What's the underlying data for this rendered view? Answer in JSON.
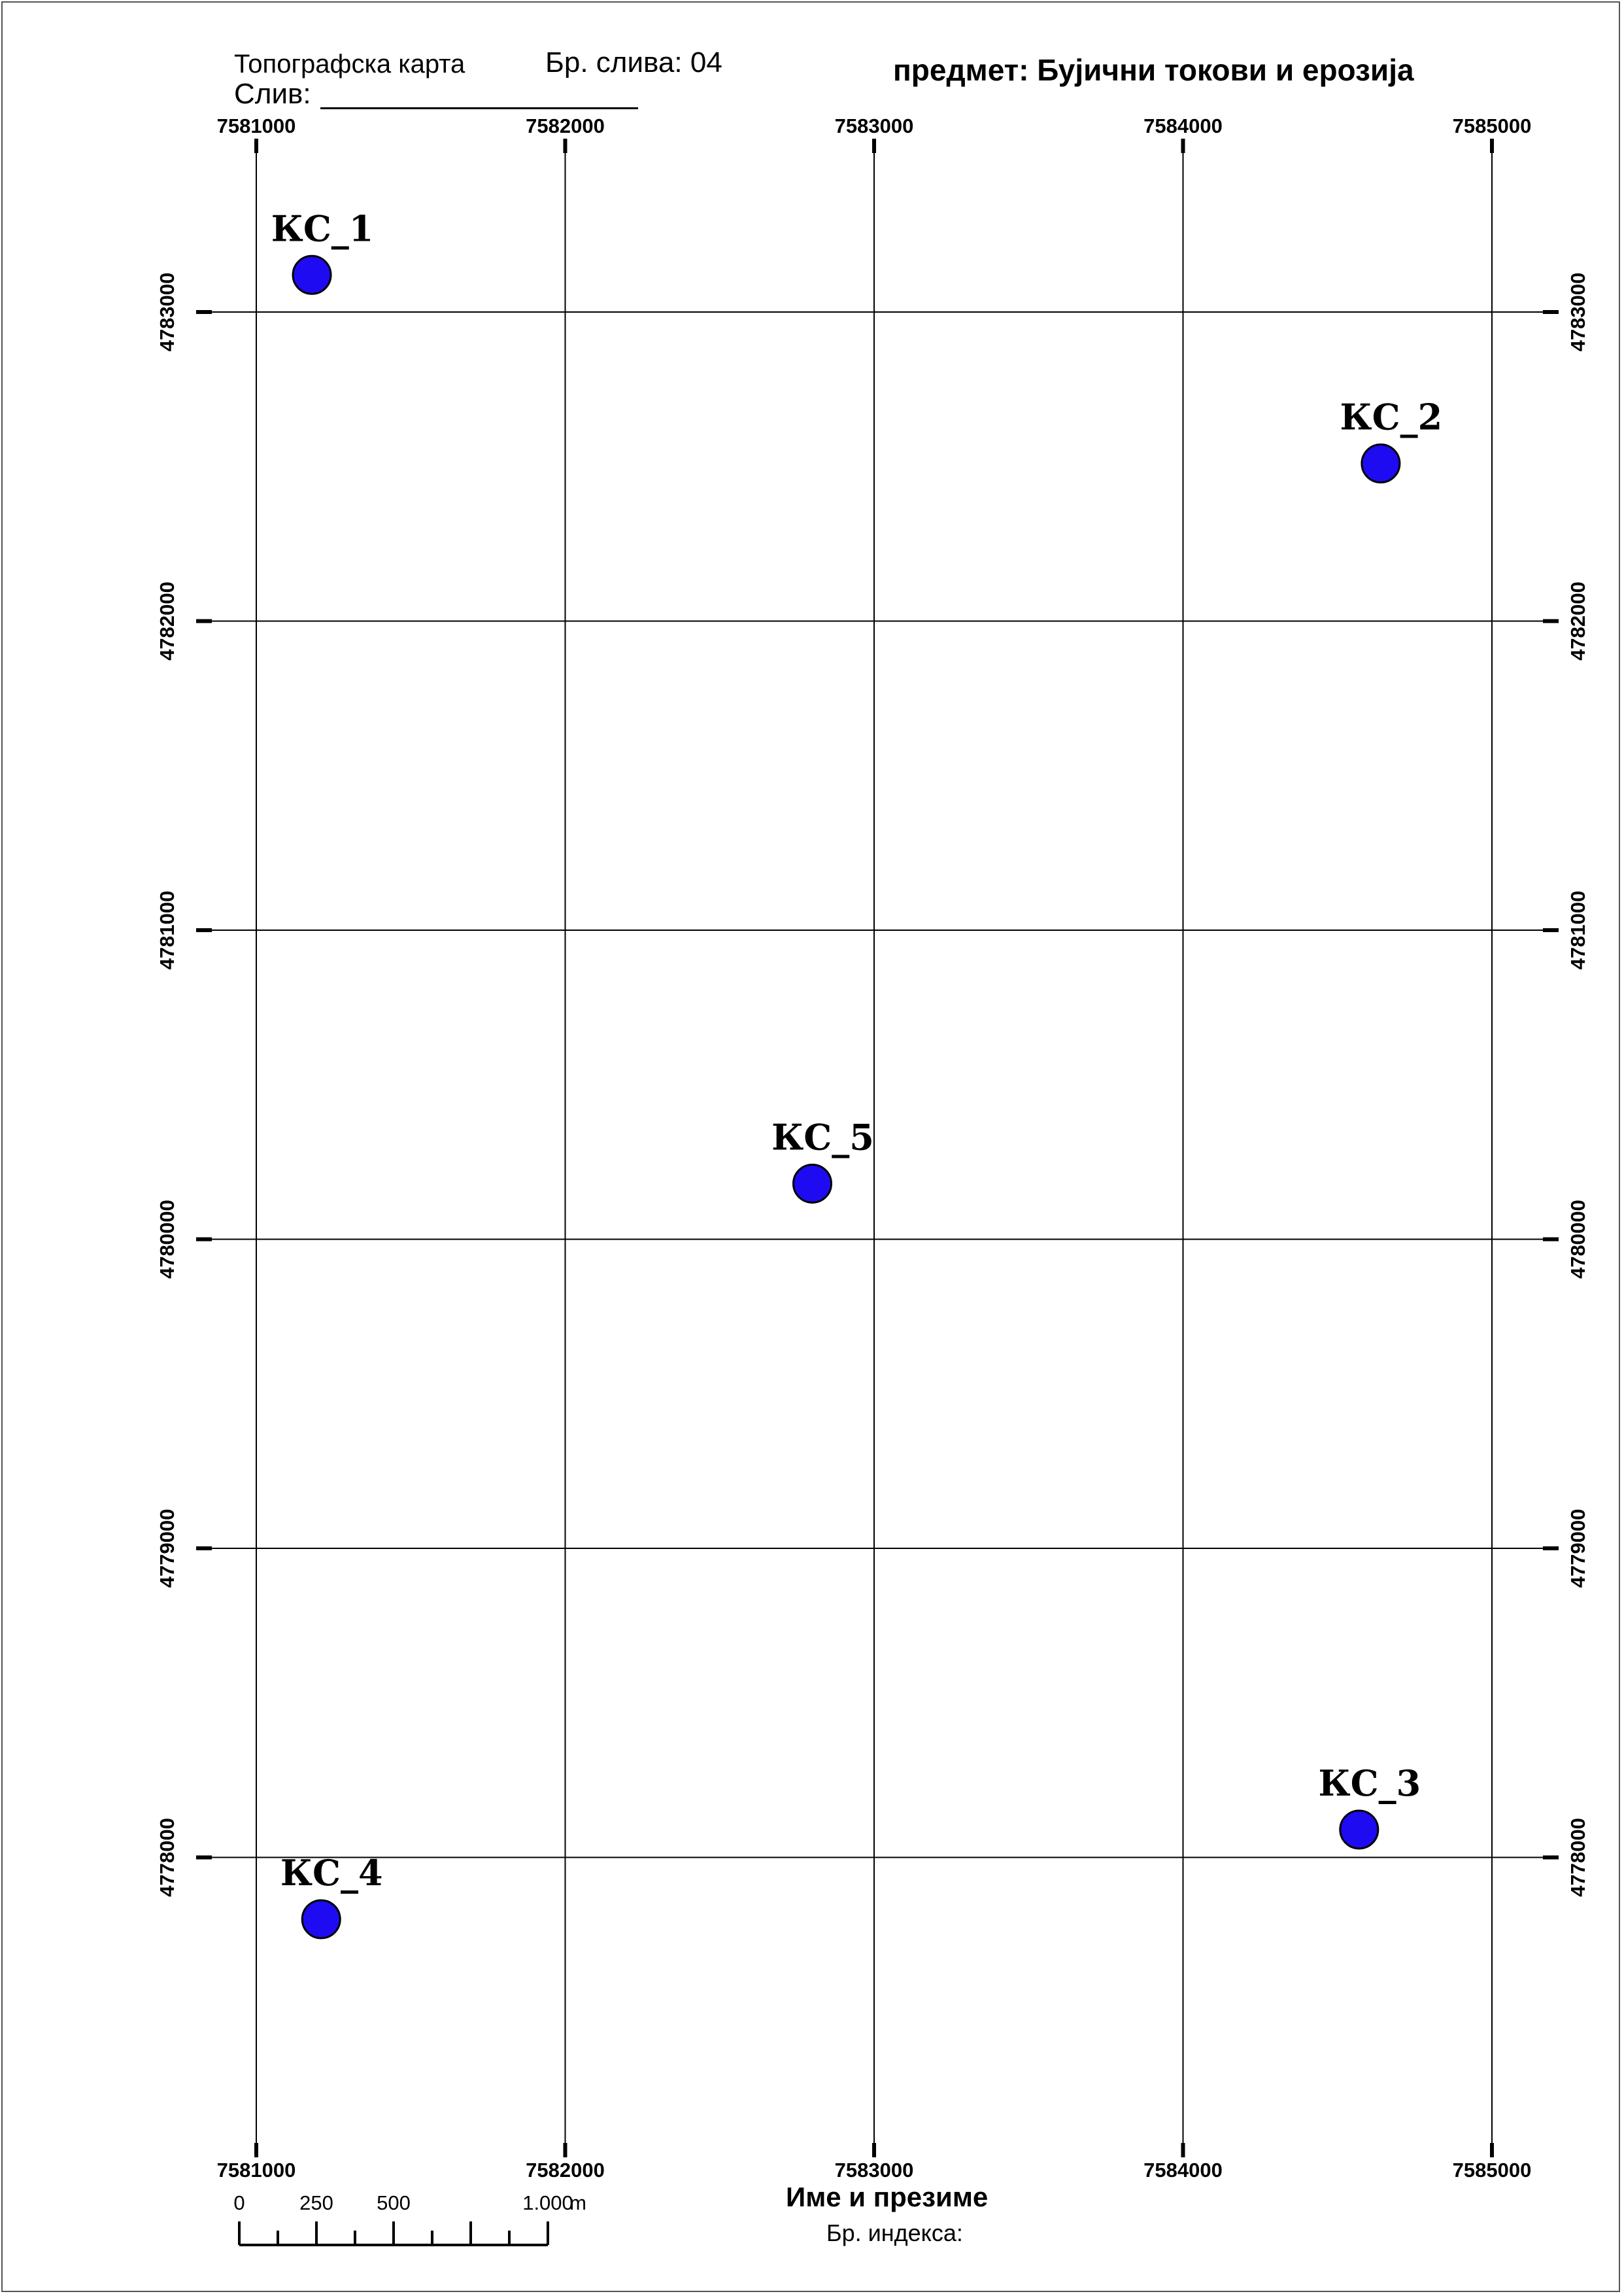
{
  "header": {
    "map_type": "Топографска карта",
    "sheet_number": "Бр. слива: 04",
    "basin_label": "Слив:",
    "subject": "предмет: Бујични токови и ерозија"
  },
  "footer": {
    "name_label": "Име и презиме",
    "index_label": "Бр. индекса:"
  },
  "grid": {
    "eastings": [
      "7581000",
      "7582000",
      "7583000",
      "7584000",
      "7585000"
    ],
    "northings": [
      "4783000",
      "4782000",
      "4781000",
      "4780000",
      "4779000",
      "4778000"
    ]
  },
  "points": [
    {
      "label": "КС_1",
      "e": 7581180,
      "n": 4783120
    },
    {
      "label": "КС_2",
      "e": 7584640,
      "n": 4782510
    },
    {
      "label": "КС_3",
      "e": 7584570,
      "n": 4778090
    },
    {
      "label": "КС_4",
      "e": 7581210,
      "n": 4777800
    },
    {
      "label": "КС_5",
      "e": 7582800,
      "n": 4780180
    }
  ],
  "scale_bar": {
    "ticks": [
      "0",
      "250",
      "500",
      "1.000"
    ],
    "unit": "m"
  },
  "colors": {
    "point_fill": "#1f0bf2",
    "point_stroke": "#000000",
    "grid_line": "#000000"
  }
}
